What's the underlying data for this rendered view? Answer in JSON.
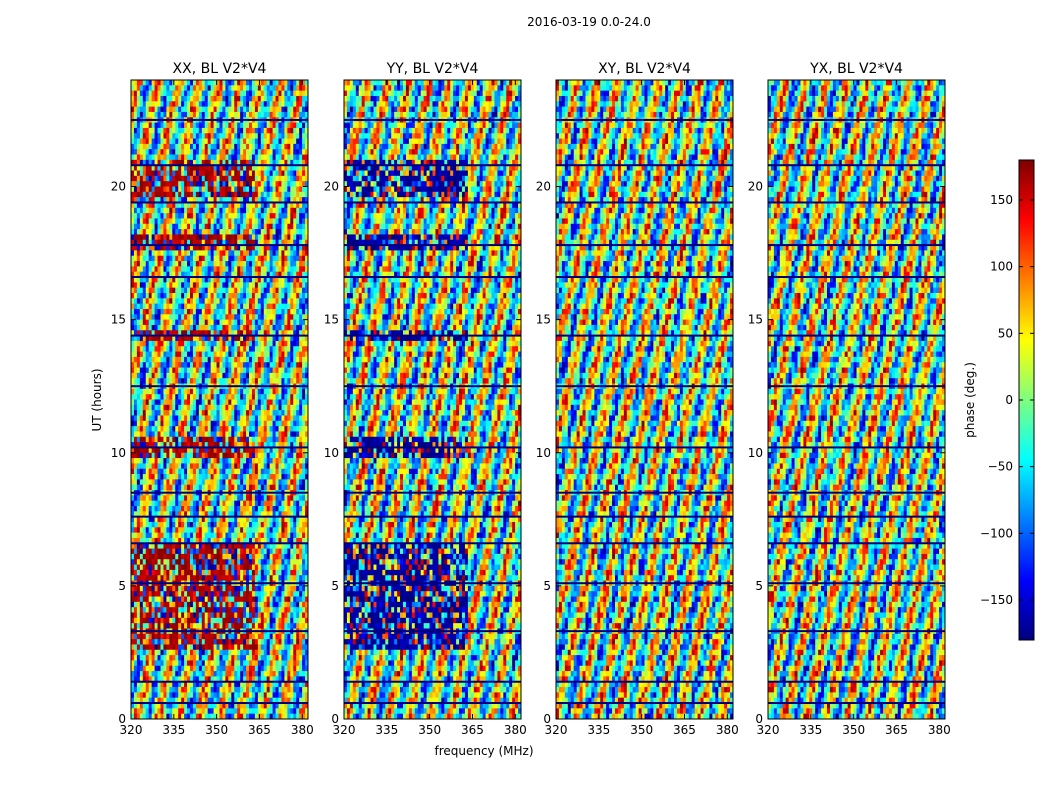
{
  "chart_data": {
    "type": "heatmap",
    "title": "2016-03-19 0.0-24.0",
    "xlabel": "frequency (MHz)",
    "ylabel": "UT (hours)",
    "xlim": [
      320,
      382
    ],
    "ylim": [
      0,
      24
    ],
    "xticks": [
      "320",
      "335",
      "350",
      "365",
      "380"
    ],
    "xtick_values": [
      320,
      335,
      350,
      365,
      380
    ],
    "yticks": [
      "0",
      "5",
      "10",
      "15",
      "20"
    ],
    "ytick_values": [
      0,
      5,
      10,
      15,
      20
    ],
    "colorbar": {
      "label": "phase (deg.)",
      "range": [
        -180,
        180
      ],
      "ticks": [
        "−150",
        "−100",
        "−50",
        "0",
        "50",
        "100",
        "150"
      ],
      "tick_values": [
        -150,
        -100,
        -50,
        0,
        50,
        100,
        150
      ],
      "colormap": "jet",
      "stops": [
        "#00007f",
        "#0000ff",
        "#007fff",
        "#00ffff",
        "#7fff7f",
        "#ffff00",
        "#ff7f00",
        "#ff0000",
        "#7f0000"
      ]
    },
    "panels": [
      {
        "title": "XX, BL V2*V4",
        "dominant_phase": 165,
        "bias": 0.45,
        "bias_freq_max": 363
      },
      {
        "title": "YY, BL V2*V4",
        "dominant_phase": -170,
        "bias": 0.45,
        "bias_freq_max": 363
      },
      {
        "title": "XY, BL V2*V4",
        "dominant_phase": 0,
        "bias": 0.0,
        "bias_freq_max": 363
      },
      {
        "title": "YX, BL V2*V4",
        "dominant_phase": 0,
        "bias": 0.0,
        "bias_freq_max": 363
      }
    ],
    "gap_hours": [
      0.6,
      1.4,
      3.3,
      5.1,
      6.6,
      7.6,
      8.5,
      10.2,
      12.5,
      14.4,
      16.6,
      17.8,
      19.4,
      20.8,
      22.5
    ]
  }
}
